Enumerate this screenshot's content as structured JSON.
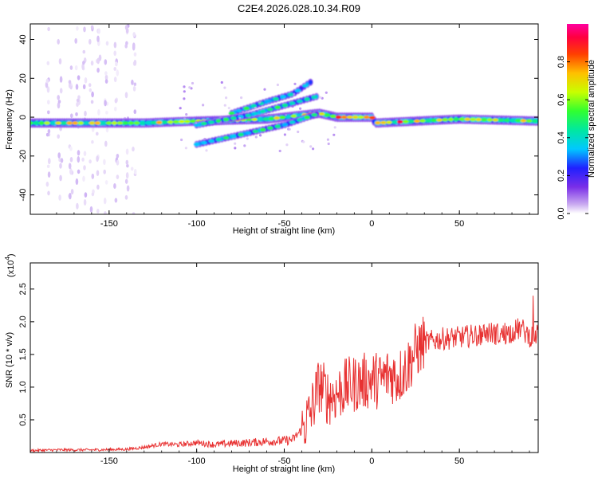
{
  "figure": {
    "title": "C2E4.2026.028.10.34.R09"
  },
  "chart_data": [
    {
      "type": "heatmap",
      "title": "C2E4.2026.028.10.34.R09",
      "xlabel": "Height of straight line (km)",
      "ylabel": "Frequency (Hz)",
      "xlim": [
        -195,
        95
      ],
      "ylim": [
        -50,
        48
      ],
      "xticks": [
        -150,
        -100,
        -50,
        0,
        50
      ],
      "yticks": [
        -40,
        -20,
        0,
        20,
        40
      ],
      "grid": false,
      "colorbar": {
        "label": "Normalized spectral amplitude",
        "range": [
          0.0,
          1.0
        ],
        "ticks": [
          0.0,
          0.2,
          0.4,
          0.6,
          0.8
        ],
        "colors": [
          "#ffffff",
          "#c8a8f0",
          "#7a2ee8",
          "#2020ff",
          "#00c8ff",
          "#00e8a0",
          "#30ff30",
          "#c8ff00",
          "#ffc000",
          "#ff4000",
          "#ff0040",
          "#ff00a0"
        ]
      },
      "features": [
        {
          "name": "main band",
          "x": [
            -195,
            -130,
            -100,
            -60,
            -30,
            -20,
            0,
            2,
            50,
            95
          ],
          "y": [
            -3,
            -3,
            -2,
            -1,
            2,
            0,
            0,
            -3,
            -1,
            -2
          ],
          "peak_amplitude": 1.0
        },
        {
          "name": "upper branch",
          "x": [
            -80,
            -60,
            -45,
            -35
          ],
          "y": [
            2,
            8,
            12,
            18
          ],
          "peak_amplitude": 0.5
        },
        {
          "name": "middle branch",
          "x": [
            -100,
            -70,
            -50,
            -30
          ],
          "y": [
            -4,
            1,
            6,
            11
          ],
          "peak_amplitude": 0.45
        },
        {
          "name": "lower branch",
          "x": [
            -100,
            -70,
            -50,
            -30
          ],
          "y": [
            -14,
            -8,
            -4,
            2
          ],
          "peak_amplitude": 0.45
        }
      ]
    },
    {
      "type": "line",
      "title": "",
      "xlabel": "Height of straight line (km)",
      "ylabel": "SNR (10 * v/v)",
      "scale_label": "(x10",
      "scale_exponent": "4",
      "scale_close": ")",
      "xlim": [
        -195,
        95
      ],
      "ylim": [
        0,
        2.9
      ],
      "xticks": [
        -150,
        -100,
        -50,
        0,
        50
      ],
      "yticks": [
        0.5,
        1.0,
        1.5,
        2.0,
        2.5
      ],
      "series": [
        {
          "name": "SNR",
          "color": "#e83232",
          "x": [
            -195,
            -180,
            -160,
            -140,
            -130,
            -120,
            -110,
            -100,
            -90,
            -80,
            -70,
            -60,
            -50,
            -45,
            -40,
            -35,
            -30,
            -25,
            -20,
            -15,
            -10,
            -5,
            0,
            5,
            10,
            15,
            20,
            25,
            30,
            40,
            50,
            55,
            60,
            65,
            70,
            75,
            80,
            85,
            90,
            95
          ],
          "y": [
            0.03,
            0.04,
            0.04,
            0.05,
            0.08,
            0.13,
            0.12,
            0.15,
            0.12,
            0.14,
            0.15,
            0.17,
            0.18,
            0.2,
            0.35,
            0.6,
            1.05,
            0.85,
            0.9,
            1.0,
            1.05,
            1.08,
            1.12,
            1.1,
            1.2,
            1.15,
            1.3,
            1.55,
            1.68,
            1.74,
            1.76,
            1.78,
            1.8,
            1.84,
            1.82,
            1.8,
            1.85,
            1.9,
            1.78,
            1.8
          ]
        }
      ]
    }
  ]
}
